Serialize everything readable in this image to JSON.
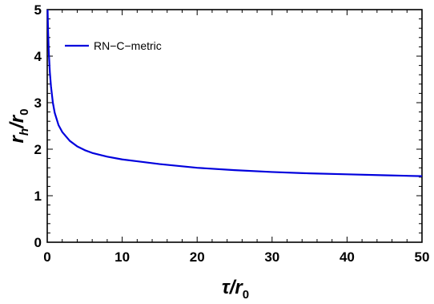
{
  "chart_data": {
    "type": "line",
    "title": "",
    "xlabel": {
      "main": "τ/r",
      "sub": "0"
    },
    "ylabel": {
      "main": "r",
      "sub1": "h",
      "mid": "/r",
      "sub2": "0"
    },
    "xlim": [
      0,
      50
    ],
    "ylim": [
      0,
      5
    ],
    "x_ticks": [
      0,
      10,
      20,
      30,
      40,
      50
    ],
    "y_ticks": [
      0,
      1,
      2,
      3,
      4,
      5
    ],
    "x_tick_labels": [
      "0",
      "10",
      "20",
      "30",
      "40",
      "50"
    ],
    "y_tick_labels": [
      "0",
      "1",
      "2",
      "3",
      "4",
      "5"
    ],
    "grid": false,
    "legend_position": "top-left",
    "series": [
      {
        "name": "RN−C−metric",
        "color": "#0000dd",
        "x": [
          0.05,
          0.1,
          0.2,
          0.35,
          0.5,
          0.75,
          1,
          1.5,
          2,
          3,
          4,
          5,
          6,
          8,
          10,
          12,
          15,
          20,
          25,
          30,
          35,
          40,
          45,
          50
        ],
        "y": [
          5.0,
          4.6,
          4.1,
          3.65,
          3.35,
          3.0,
          2.78,
          2.52,
          2.37,
          2.18,
          2.06,
          1.98,
          1.92,
          1.84,
          1.78,
          1.74,
          1.68,
          1.6,
          1.55,
          1.51,
          1.48,
          1.46,
          1.44,
          1.42
        ]
      }
    ]
  }
}
